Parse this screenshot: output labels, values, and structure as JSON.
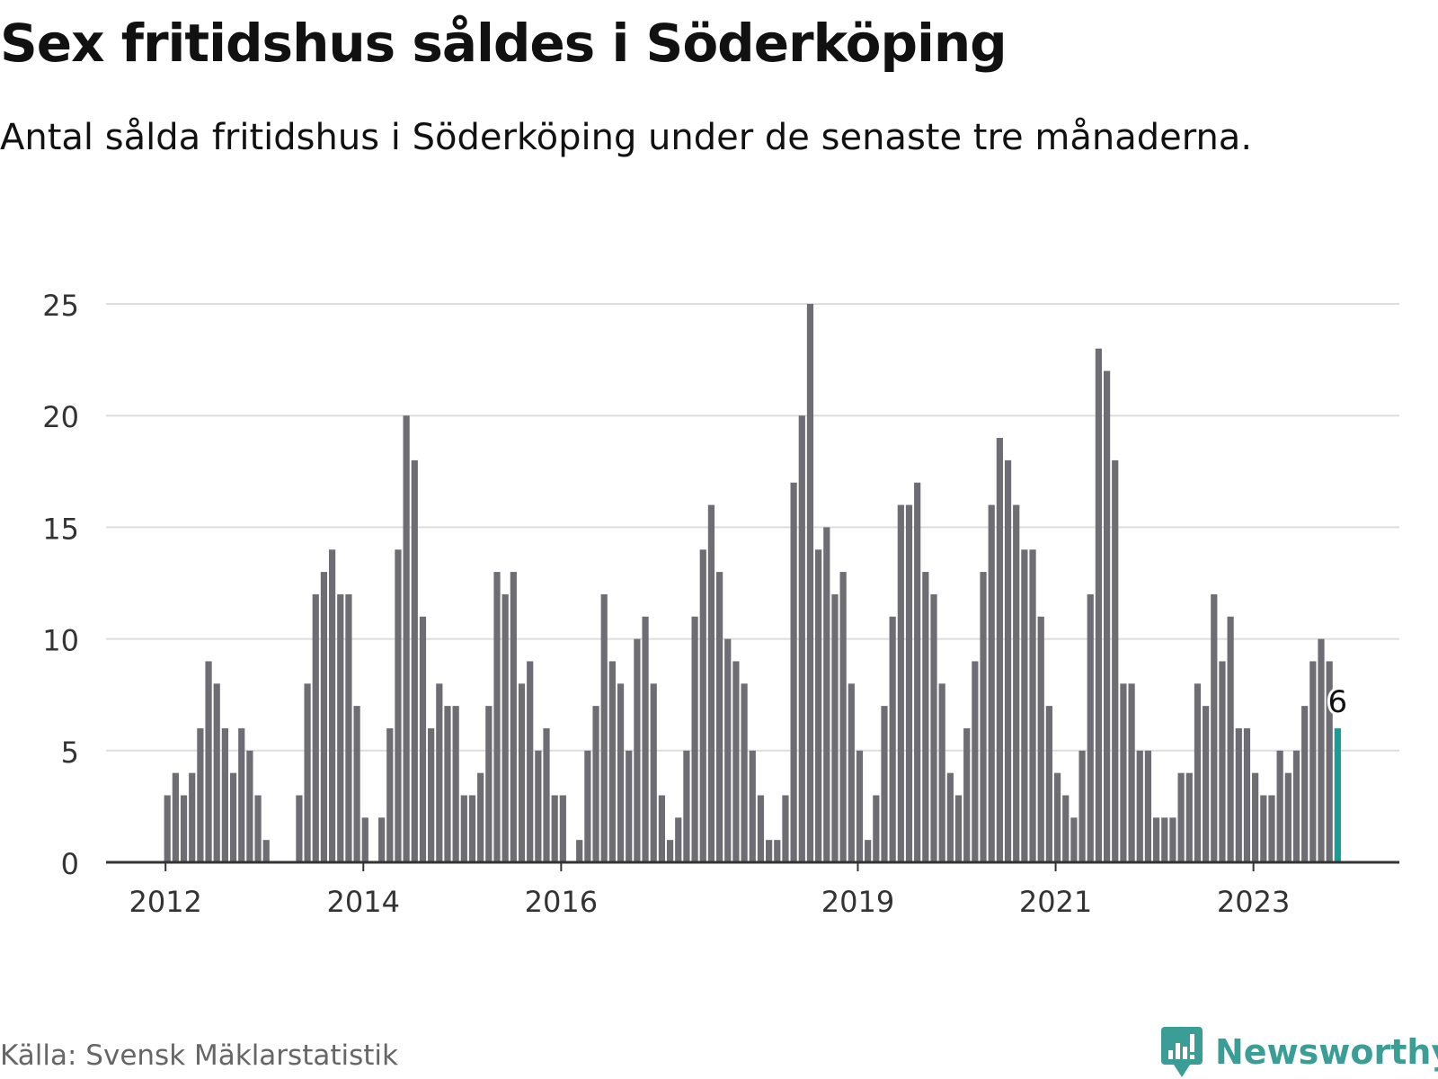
{
  "title": "Sex fritidshus såldes i Söderköping",
  "subtitle": "Antal sålda fritidshus i Söderköping under de senaste tre månaderna.",
  "source": "Källa: Svensk Mäklarstatistik",
  "brand": {
    "name": "Newsworthy",
    "icon": "newsworthy-logo-icon",
    "color": "#3a9e96"
  },
  "colors": {
    "bar": "#6d6d73",
    "highlight": "#1a9d94",
    "grid": "#dddddd",
    "axis": "#333333"
  },
  "chart_data": {
    "type": "bar",
    "title": "Sex fritidshus såldes i Söderköping",
    "subtitle": "Antal sålda fritidshus i Söderköping under de senaste tre månaderna.",
    "xlabel": "",
    "ylabel": "",
    "ylim": [
      0,
      25
    ],
    "yticks": [
      0,
      5,
      10,
      15,
      20,
      25
    ],
    "grid": true,
    "x_ticks": [
      {
        "label": "2012",
        "index": 0
      },
      {
        "label": "2014",
        "index": 24
      },
      {
        "label": "2016",
        "index": 48
      },
      {
        "label": "2019",
        "index": 84
      },
      {
        "label": "2021",
        "index": 108
      },
      {
        "label": "2023",
        "index": 132
      }
    ],
    "values": [
      3,
      4,
      3,
      4,
      6,
      9,
      8,
      6,
      4,
      6,
      5,
      3,
      1,
      null,
      null,
      null,
      3,
      8,
      12,
      13,
      14,
      12,
      12,
      7,
      2,
      0,
      2,
      6,
      14,
      20,
      18,
      11,
      6,
      8,
      7,
      7,
      3,
      3,
      4,
      7,
      13,
      12,
      13,
      8,
      9,
      5,
      6,
      3,
      3,
      0,
      1,
      5,
      7,
      12,
      9,
      8,
      5,
      10,
      11,
      8,
      3,
      1,
      2,
      5,
      11,
      14,
      16,
      13,
      10,
      9,
      8,
      5,
      3,
      1,
      1,
      3,
      17,
      20,
      25,
      14,
      15,
      12,
      13,
      8,
      5,
      1,
      3,
      7,
      11,
      16,
      16,
      17,
      13,
      12,
      8,
      4,
      3,
      6,
      9,
      13,
      16,
      19,
      18,
      16,
      14,
      14,
      11,
      7,
      4,
      3,
      2,
      5,
      12,
      23,
      22,
      18,
      8,
      8,
      5,
      5,
      2,
      2,
      2,
      4,
      4,
      8,
      7,
      12,
      9,
      11,
      6,
      6,
      4,
      3,
      3,
      5,
      4,
      5,
      7,
      9,
      10,
      9,
      6
    ],
    "highlight_index": 142,
    "highlight_label": "6"
  }
}
